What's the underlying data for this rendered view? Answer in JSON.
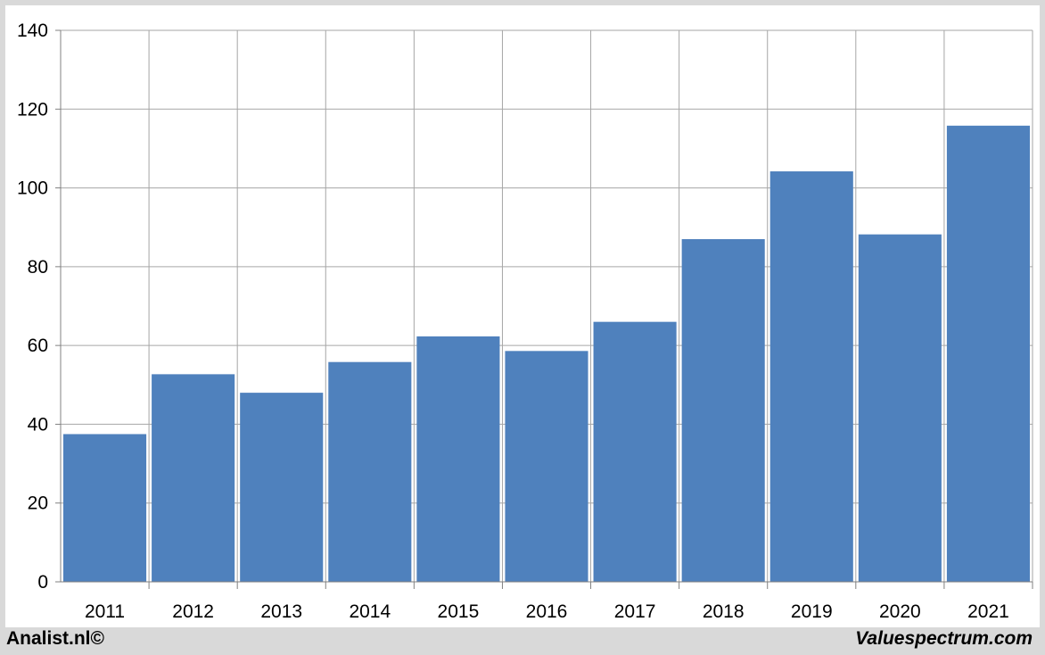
{
  "chart_data": {
    "type": "bar",
    "title": "",
    "xlabel": "",
    "ylabel": "",
    "categories": [
      "2011",
      "2012",
      "2013",
      "2014",
      "2015",
      "2016",
      "2017",
      "2018",
      "2019",
      "2020",
      "2021"
    ],
    "values": [
      37.5,
      52.7,
      48.0,
      55.8,
      62.3,
      58.6,
      66.0,
      87.0,
      104.2,
      88.2,
      115.8
    ],
    "ylim": [
      0,
      140
    ],
    "yticks": [
      0,
      20,
      40,
      60,
      80,
      100,
      120,
      140
    ],
    "grid": true,
    "bar_color": "#4f81bd",
    "grid_color": "#a6a6a6"
  },
  "footer": {
    "left": "Analist.nl©",
    "right": "Valuespectrum.com"
  }
}
